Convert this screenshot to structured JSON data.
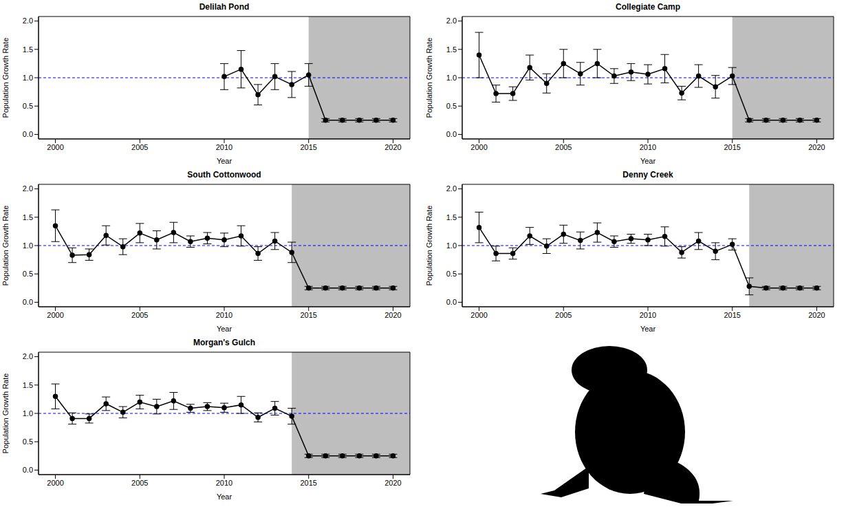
{
  "chart_data": [
    {
      "type": "line",
      "title": "Delilah Pond",
      "x_label": "Year",
      "y_label": "Population Growth Rate",
      "color": "#000000",
      "marker": "circle",
      "x": [
        2010,
        2011,
        2012,
        2013,
        2014,
        2015,
        2016,
        2017,
        2018,
        2019,
        2020
      ],
      "values": [
        1.02,
        1.15,
        0.7,
        1.02,
        0.88,
        1.05,
        0.25,
        0.25,
        0.25,
        0.25,
        0.25
      ],
      "errors": [
        0.23,
        0.33,
        0.18,
        0.23,
        0.23,
        0.2,
        0.03,
        0.03,
        0.03,
        0.03,
        0.03
      ],
      "reference_line": 1,
      "shaded_from": 2015,
      "xlim": [
        1999,
        2021
      ],
      "xticks": [
        2000,
        2005,
        2010,
        2015,
        2020
      ],
      "ylim": [
        -0.08,
        2.08
      ],
      "yticks": [
        {
          "value": 0,
          "label": "0.0"
        },
        {
          "value": 0.5,
          "label": "0.5"
        },
        {
          "value": 1,
          "label": "1.0"
        },
        {
          "value": 1.5,
          "label": "1.5"
        },
        {
          "value": 2,
          "label": "2.0"
        }
      ]
    },
    {
      "type": "line",
      "title": "Collegiate Camp",
      "x_label": "Year",
      "y_label": "Population Growth Rate",
      "color": "#000000",
      "marker": "circle",
      "x": [
        2000,
        2001,
        2002,
        2003,
        2004,
        2005,
        2006,
        2007,
        2008,
        2009,
        2010,
        2011,
        2012,
        2013,
        2014,
        2015,
        2016,
        2017,
        2018,
        2019,
        2020
      ],
      "values": [
        1.4,
        0.72,
        0.72,
        1.18,
        0.9,
        1.25,
        1.07,
        1.25,
        1.03,
        1.1,
        1.06,
        1.16,
        0.73,
        1.03,
        0.84,
        1.03,
        0.25,
        0.25,
        0.25,
        0.25,
        0.25
      ],
      "errors": [
        0.4,
        0.15,
        0.12,
        0.22,
        0.17,
        0.25,
        0.2,
        0.25,
        0.13,
        0.15,
        0.17,
        0.25,
        0.12,
        0.2,
        0.2,
        0.15,
        0.03,
        0.03,
        0.03,
        0.03,
        0.03
      ],
      "reference_line": 1,
      "shaded_from": 2015,
      "xlim": [
        1999,
        2021
      ],
      "xticks": [
        2000,
        2005,
        2010,
        2015,
        2020
      ],
      "ylim": [
        -0.08,
        2.08
      ],
      "yticks": [
        {
          "value": 0,
          "label": "0.0"
        },
        {
          "value": 0.5,
          "label": "0.5"
        },
        {
          "value": 1,
          "label": "1.0"
        },
        {
          "value": 1.5,
          "label": "1.5"
        },
        {
          "value": 2,
          "label": "2.0"
        }
      ]
    },
    {
      "type": "line",
      "title": "South Cottonwood",
      "x_label": "Year",
      "y_label": "Population Growth Rate",
      "color": "#000000",
      "marker": "circle",
      "x": [
        2000,
        2001,
        2002,
        2003,
        2004,
        2005,
        2006,
        2007,
        2008,
        2009,
        2010,
        2011,
        2012,
        2013,
        2014,
        2015,
        2016,
        2017,
        2018,
        2019,
        2020
      ],
      "values": [
        1.35,
        0.83,
        0.84,
        1.18,
        0.98,
        1.22,
        1.1,
        1.23,
        1.07,
        1.13,
        1.1,
        1.17,
        0.86,
        1.08,
        0.88,
        0.25,
        0.25,
        0.25,
        0.25,
        0.25,
        0.25
      ],
      "errors": [
        0.28,
        0.13,
        0.1,
        0.17,
        0.14,
        0.17,
        0.16,
        0.18,
        0.1,
        0.1,
        0.12,
        0.18,
        0.12,
        0.15,
        0.18,
        0.03,
        0.03,
        0.03,
        0.03,
        0.03,
        0.03
      ],
      "reference_line": 1,
      "shaded_from": 2014,
      "xlim": [
        1999,
        2021
      ],
      "xticks": [
        2000,
        2005,
        2010,
        2015,
        2020
      ],
      "ylim": [
        -0.08,
        2.08
      ],
      "yticks": [
        {
          "value": 0,
          "label": "0.0"
        },
        {
          "value": 0.5,
          "label": "0.5"
        },
        {
          "value": 1,
          "label": "1.0"
        },
        {
          "value": 1.5,
          "label": "1.5"
        },
        {
          "value": 2,
          "label": "2.0"
        }
      ]
    },
    {
      "type": "line",
      "title": "Denny Creek",
      "x_label": "Year",
      "y_label": "Population Growth Rate",
      "color": "#000000",
      "marker": "circle",
      "x": [
        2000,
        2001,
        2002,
        2003,
        2004,
        2005,
        2006,
        2007,
        2008,
        2009,
        2010,
        2011,
        2012,
        2013,
        2014,
        2015,
        2016,
        2017,
        2018,
        2019,
        2020
      ],
      "values": [
        1.32,
        0.86,
        0.86,
        1.17,
        0.99,
        1.2,
        1.09,
        1.23,
        1.07,
        1.12,
        1.1,
        1.16,
        0.88,
        1.08,
        0.9,
        1.02,
        0.28,
        0.25,
        0.25,
        0.25,
        0.25
      ],
      "errors": [
        0.27,
        0.13,
        0.1,
        0.15,
        0.13,
        0.16,
        0.15,
        0.17,
        0.1,
        0.08,
        0.1,
        0.17,
        0.1,
        0.15,
        0.15,
        0.1,
        0.15,
        0.03,
        0.03,
        0.03,
        0.03
      ],
      "reference_line": 1,
      "shaded_from": 2016,
      "xlim": [
        1999,
        2021
      ],
      "xticks": [
        2000,
        2005,
        2010,
        2015,
        2020
      ],
      "ylim": [
        -0.08,
        2.08
      ],
      "yticks": [
        {
          "value": 0,
          "label": "0.0"
        },
        {
          "value": 0.5,
          "label": "0.5"
        },
        {
          "value": 1,
          "label": "1.0"
        },
        {
          "value": 1.5,
          "label": "1.5"
        },
        {
          "value": 2,
          "label": "2.0"
        }
      ]
    },
    {
      "type": "line",
      "title": "Morgan's Gulch",
      "x_label": "Year",
      "y_label": "Population Growth Rate",
      "color": "#000000",
      "marker": "circle",
      "x": [
        2000,
        2001,
        2002,
        2003,
        2004,
        2005,
        2006,
        2007,
        2008,
        2009,
        2010,
        2011,
        2012,
        2013,
        2014,
        2015,
        2016,
        2017,
        2018,
        2019,
        2020
      ],
      "values": [
        1.3,
        0.91,
        0.91,
        1.17,
        1.02,
        1.2,
        1.12,
        1.22,
        1.09,
        1.12,
        1.1,
        1.15,
        0.93,
        1.09,
        0.95,
        0.25,
        0.25,
        0.25,
        0.25,
        0.25,
        0.25
      ],
      "errors": [
        0.22,
        0.1,
        0.08,
        0.12,
        0.1,
        0.12,
        0.13,
        0.15,
        0.07,
        0.07,
        0.08,
        0.15,
        0.08,
        0.12,
        0.14,
        0.03,
        0.03,
        0.03,
        0.03,
        0.03,
        0.03
      ],
      "reference_line": 1,
      "shaded_from": 2014,
      "xlim": [
        1999,
        2021
      ],
      "xticks": [
        2000,
        2005,
        2010,
        2015,
        2020
      ],
      "ylim": [
        -0.08,
        2.08
      ],
      "yticks": [
        {
          "value": 0,
          "label": "0.0"
        },
        {
          "value": 0.5,
          "label": "0.5"
        },
        {
          "value": 1,
          "label": "1.0"
        },
        {
          "value": 1.5,
          "label": "1.5"
        },
        {
          "value": 2,
          "label": "2.0"
        }
      ]
    }
  ]
}
